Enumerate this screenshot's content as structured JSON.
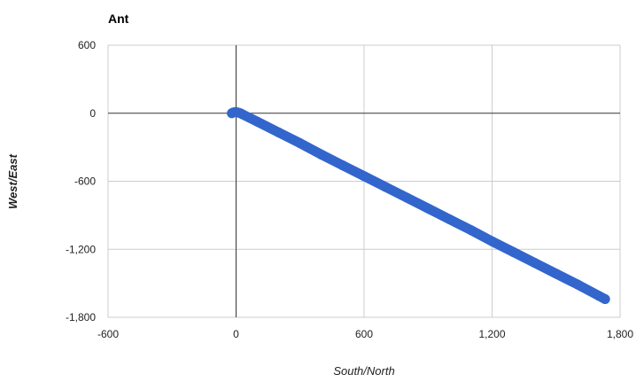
{
  "chart_data": {
    "type": "scatter",
    "title": "Ant",
    "xlabel": "South/North",
    "ylabel": "West/East",
    "xlim": [
      -600,
      1800
    ],
    "ylim": [
      -1800,
      600
    ],
    "xticks": [
      -600,
      0,
      600,
      1200,
      1800
    ],
    "yticks": [
      600,
      0,
      -600,
      -1200,
      -1800
    ],
    "xtick_labels": [
      "-600",
      "0",
      "600",
      "1,200",
      "1,800"
    ],
    "ytick_labels": [
      "600",
      "0",
      "-600",
      "-1,200",
      "-1,800"
    ],
    "grid": true,
    "legend": "none",
    "series": [
      {
        "color": "#3366cc",
        "x": [
          -20,
          -15,
          -10,
          -5,
          0,
          5,
          10,
          15,
          20,
          30,
          100,
          200,
          300,
          400,
          500,
          600,
          700,
          800,
          900,
          1000,
          1100,
          1200,
          1300,
          1400,
          1500,
          1600,
          1700,
          1730
        ],
        "y": [
          0,
          5,
          8,
          10,
          10,
          8,
          5,
          3,
          0,
          -10,
          -75,
          -170,
          -265,
          -365,
          -460,
          -555,
          -650,
          -745,
          -840,
          -935,
          -1030,
          -1130,
          -1225,
          -1320,
          -1415,
          -1510,
          -1610,
          -1640
        ]
      }
    ]
  }
}
